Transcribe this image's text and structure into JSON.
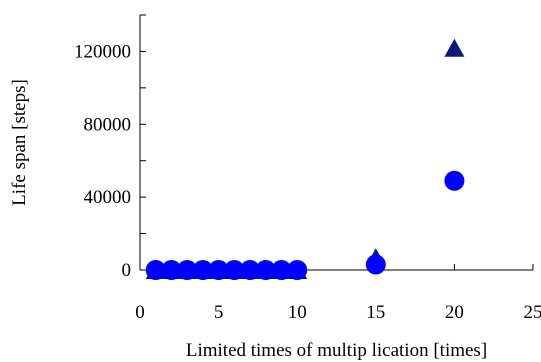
{
  "chart_data": {
    "type": "scatter",
    "xlabel": "Limited times of multip lication [times]",
    "ylabel": "Life span [steps]",
    "xlim": [
      0,
      25
    ],
    "ylim": [
      0,
      140000
    ],
    "x_ticks": [
      0,
      5,
      10,
      15,
      20,
      25
    ],
    "y_ticks": [
      0,
      40000,
      80000,
      120000
    ],
    "y_minor_ticks": [
      20000,
      60000,
      100000,
      140000
    ],
    "grid": false,
    "series": [
      {
        "marker": "triangle",
        "color": "#0b1a78",
        "x": [
          1,
          2,
          3,
          4,
          5,
          6,
          7,
          8,
          9,
          10,
          15,
          20
        ],
        "y": [
          0,
          0,
          0,
          0,
          0,
          0,
          0,
          0,
          0,
          0,
          7000,
          122000
        ]
      },
      {
        "marker": "circle",
        "color": "#0000ff",
        "x": [
          1,
          2,
          3,
          4,
          5,
          6,
          7,
          8,
          9,
          10,
          15,
          20
        ],
        "y": [
          0,
          0,
          0,
          0,
          0,
          0,
          0,
          0,
          0,
          0,
          3000,
          49000
        ]
      }
    ]
  }
}
